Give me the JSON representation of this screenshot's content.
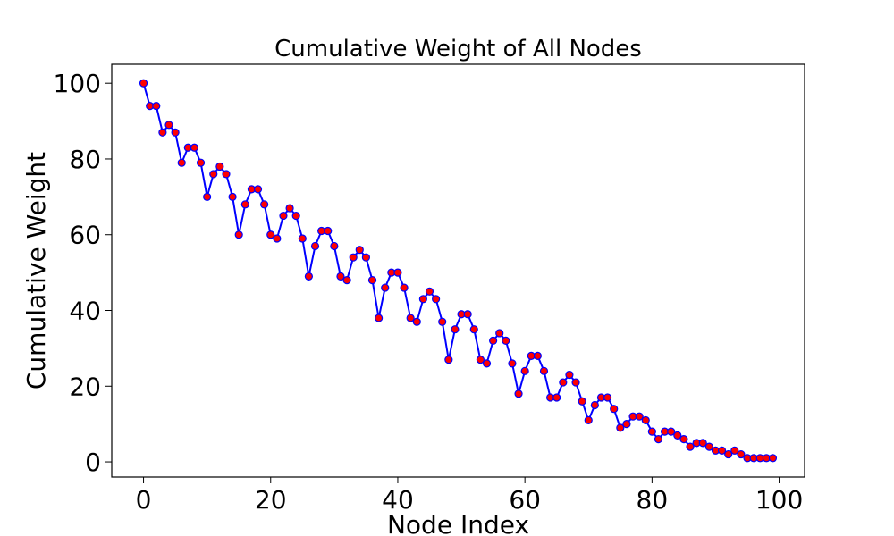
{
  "chart_data": {
    "type": "line",
    "title": "Cumulative Weight of All Nodes",
    "xlabel": "Node Index",
    "ylabel": "Cumulative Weight",
    "xlim": [
      -5,
      104
    ],
    "ylim": [
      -4,
      105
    ],
    "x_ticks": [
      0,
      20,
      40,
      60,
      80,
      100
    ],
    "y_ticks": [
      0,
      20,
      40,
      60,
      80,
      100
    ],
    "grid": false,
    "legend": "none",
    "series": [
      {
        "line_color": "#0000ff",
        "marker_face_color": "#ff0000",
        "marker_edge_color": "#0000ff",
        "x": [
          0,
          1,
          2,
          3,
          4,
          5,
          6,
          7,
          8,
          9,
          10,
          11,
          12,
          13,
          14,
          15,
          16,
          17,
          18,
          19,
          20,
          21,
          22,
          23,
          24,
          25,
          26,
          27,
          28,
          29,
          30,
          31,
          32,
          33,
          34,
          35,
          36,
          37,
          38,
          39,
          40,
          41,
          42,
          43,
          44,
          45,
          46,
          47,
          48,
          49,
          50,
          51,
          52,
          53,
          54,
          55,
          56,
          57,
          58,
          59,
          60,
          61,
          62,
          63,
          64,
          65,
          66,
          67,
          68,
          69,
          70,
          71,
          72,
          73,
          74,
          75,
          76,
          77,
          78,
          79,
          80,
          81,
          82,
          83,
          84,
          85,
          86,
          87,
          88,
          89,
          90,
          91,
          92,
          93,
          94,
          95,
          96,
          97,
          98,
          99
        ],
        "values": [
          100,
          94,
          94,
          87,
          89,
          87,
          79,
          83,
          83,
          79,
          70,
          76,
          78,
          76,
          70,
          60,
          68,
          72,
          72,
          68,
          60,
          59,
          65,
          67,
          65,
          59,
          49,
          57,
          61,
          61,
          57,
          49,
          48,
          54,
          56,
          54,
          48,
          38,
          46,
          50,
          50,
          46,
          38,
          37,
          43,
          45,
          43,
          37,
          27,
          35,
          39,
          39,
          35,
          27,
          26,
          32,
          34,
          32,
          26,
          18,
          24,
          28,
          28,
          24,
          17,
          17,
          21,
          23,
          21,
          16,
          11,
          15,
          17,
          17,
          14,
          9,
          10,
          12,
          12,
          11,
          8,
          6,
          8,
          8,
          7,
          6,
          4,
          5,
          5,
          4,
          3,
          3,
          2,
          3,
          2,
          1,
          1,
          1,
          1,
          1
        ]
      }
    ]
  }
}
